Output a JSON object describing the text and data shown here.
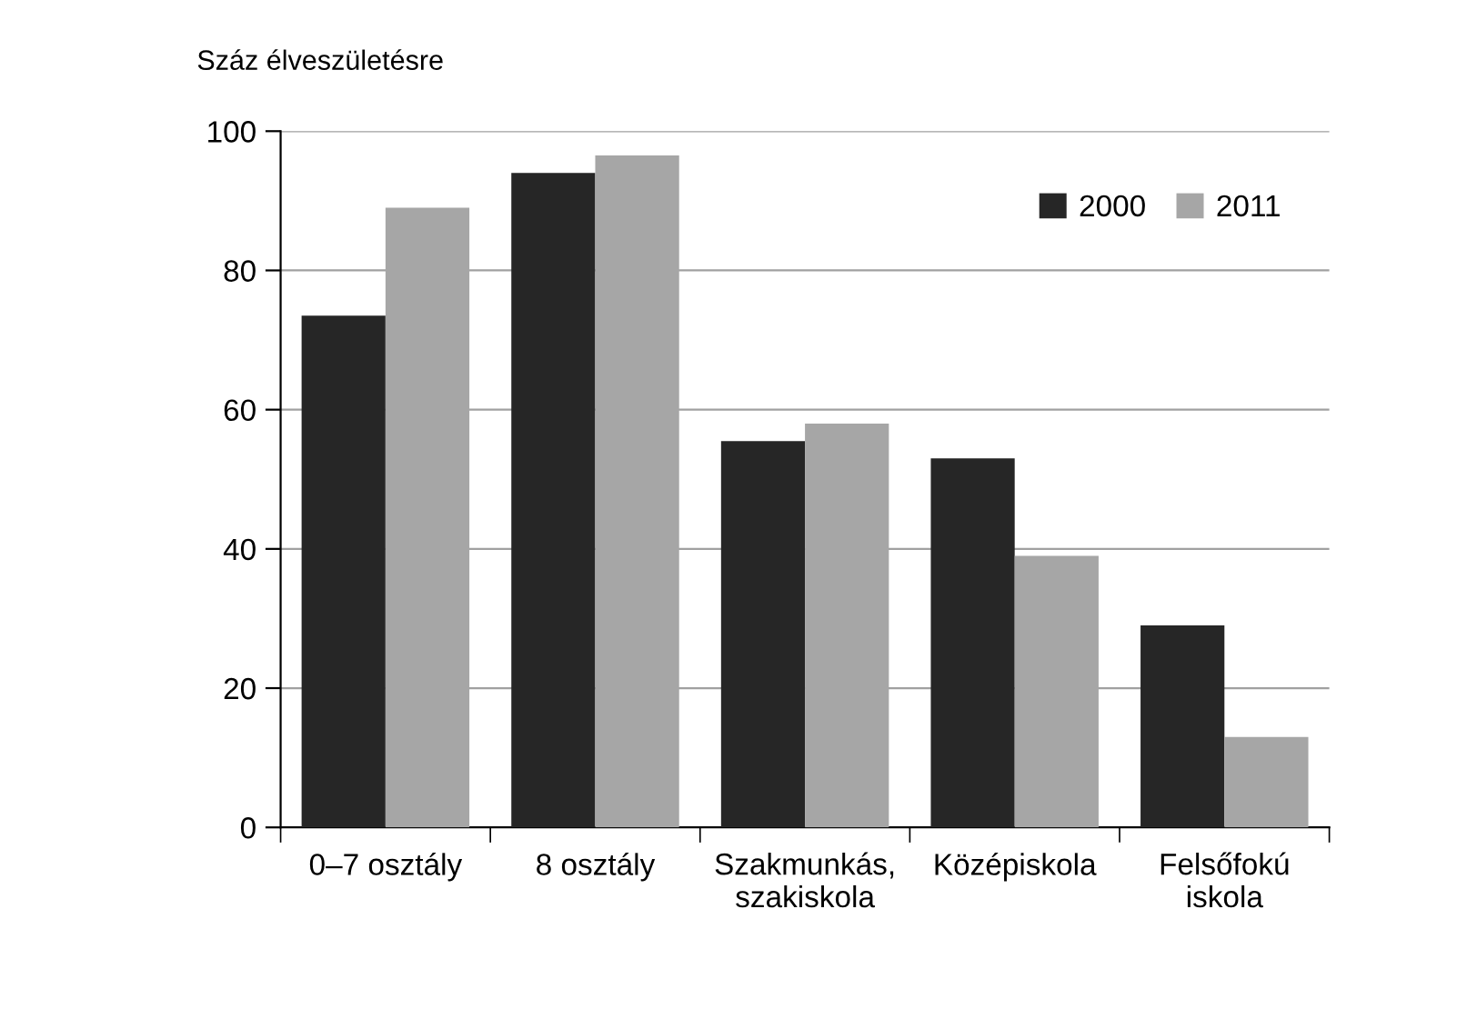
{
  "chart_data": {
    "type": "bar",
    "ylabel": "Száz élveszületésre",
    "categories": [
      "0–7 osztály",
      "8 osztály",
      "Szakmunkás,\nszakiskola",
      "Középiskola",
      "Felsőfokú\niskola"
    ],
    "series": [
      {
        "name": "2000",
        "color": "#262626",
        "values": [
          73.5,
          94,
          55.5,
          53,
          29
        ]
      },
      {
        "name": "2011",
        "color": "#a6a6a6",
        "values": [
          89,
          96.5,
          58,
          39,
          13
        ]
      }
    ],
    "ylim": [
      0,
      100
    ],
    "yticks": [
      0,
      20,
      40,
      60,
      80,
      100
    ],
    "grid": "y",
    "legend": "top right"
  }
}
